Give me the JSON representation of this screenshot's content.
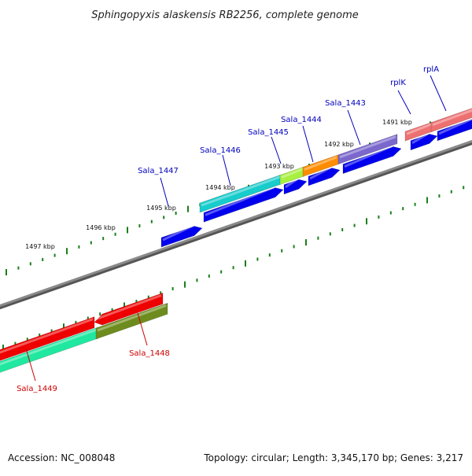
{
  "title": "Sphingopyxis alaskensis RB2256, complete genome",
  "footer": {
    "accession": "Accession: NC_008048",
    "summary": "Topology: circular; Length: 3,345,170 bp; Genes: 3,217"
  },
  "ticks": [
    "1497 kbp",
    "1496 kbp",
    "1495 kbp",
    "1494 kbp",
    "1493 kbp",
    "1492 kbp",
    "1491 kbp"
  ],
  "genes": [
    {
      "label": "Sala_1449",
      "color": "#cc0000"
    },
    {
      "label": "Sala_1448",
      "color": "#cc0000"
    },
    {
      "label": "Sala_1447",
      "color": "#0000bb"
    },
    {
      "label": "Sala_1446",
      "color": "#0000bb"
    },
    {
      "label": "Sala_1445",
      "color": "#0000bb"
    },
    {
      "label": "Sala_1444",
      "color": "#0000bb"
    },
    {
      "label": "Sala_1443",
      "color": "#0000bb"
    },
    {
      "label": "rplK",
      "color": "#0000bb"
    },
    {
      "label": "rplA",
      "color": "#0000bb"
    }
  ],
  "colors": {
    "backbone": "#808080",
    "tick": "#1a7f1a",
    "cds_forward": "#0000ee",
    "red_feature": "#ee0000",
    "teal_feature": "#18cccc",
    "green_feature": "#6e8c1e",
    "lime_feature": "#a8f040",
    "orange_feature": "#ff8c00",
    "purple_feature": "#7b68cc",
    "pink_feature": "#ee7070",
    "mint_feature": "#20e8a0"
  }
}
